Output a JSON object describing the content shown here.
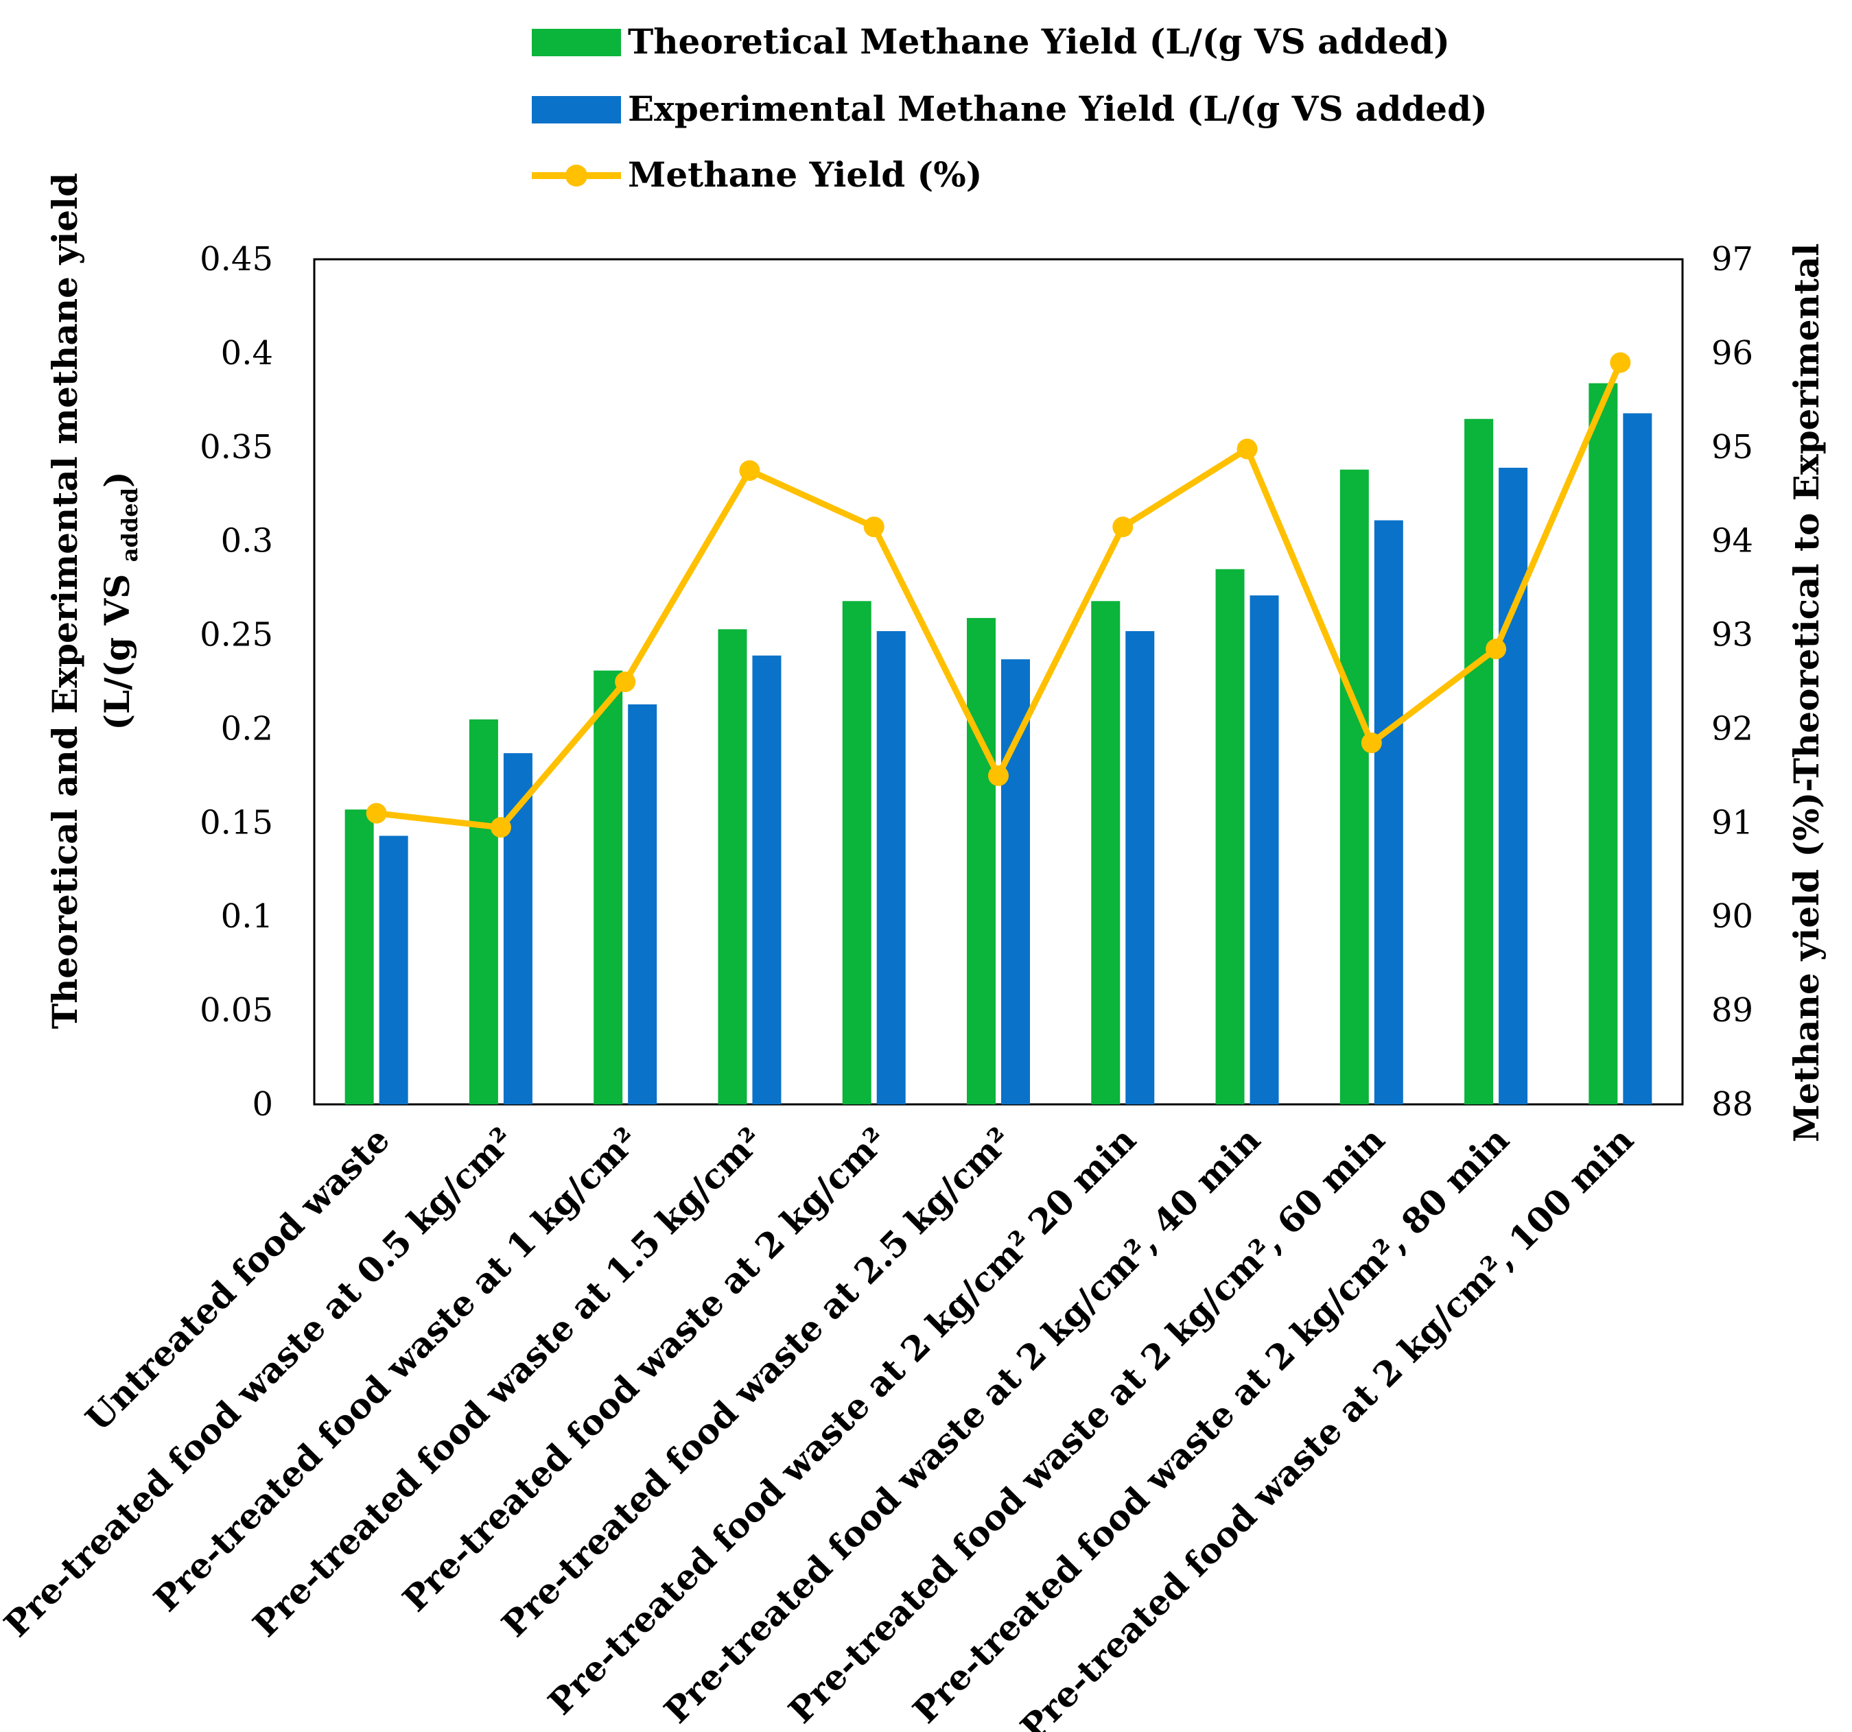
{
  "chart_data": {
    "type": "bar",
    "categories": [
      "Untreated food waste",
      "Pre-treated food waste at 0.5 kg/cm²",
      "Pre-treated food waste  at 1 kg/cm²",
      "Pre-treated food waste  at 1.5 kg/cm²",
      "Pre-treated food waste  at 2 kg/cm²",
      "Pre-treated food waste  at 2.5 kg/cm²",
      "Pre-treated food waste  at 2 kg/cm² 20 min",
      "Pre-treated food waste  at 2 kg/cm², 40 min",
      "Pre-treated food waste  at 2 kg/cm², 60 min",
      "Pre-treated food waste  at 2 kg/cm², 80 min",
      "Pre-treated food waste  at 2 kg/cm², 100 min"
    ],
    "series": [
      {
        "name": "Theoretical Methane Yield (L/(g VS added)",
        "type": "bar",
        "axis": "left",
        "color": "#0BB43A",
        "values": [
          0.157,
          0.205,
          0.231,
          0.253,
          0.268,
          0.259,
          0.268,
          0.285,
          0.338,
          0.365,
          0.384
        ]
      },
      {
        "name": "Experimental Methane Yield (L/(g VS added)",
        "type": "bar",
        "axis": "left",
        "color": "#0A72C9",
        "values": [
          0.143,
          0.187,
          0.213,
          0.239,
          0.252,
          0.237,
          0.252,
          0.271,
          0.311,
          0.339,
          0.368
        ]
      },
      {
        "name": "Methane Yield (%)",
        "type": "line",
        "axis": "right",
        "color": "#FFC000",
        "values": [
          91.1,
          90.95,
          92.5,
          94.75,
          94.15,
          91.5,
          94.15,
          94.98,
          91.85,
          92.85,
          95.9
        ]
      }
    ],
    "ylim": [
      0,
      0.45
    ],
    "y_ticks": [
      "0",
      "0.05",
      "0.1",
      "0.15",
      "0.2",
      "0.25",
      "0.3",
      "0.35",
      "0.4",
      "0.45"
    ],
    "y2lim": [
      88,
      97
    ],
    "y2_ticks": [
      "88",
      "89",
      "90",
      "91",
      "92",
      "93",
      "94",
      "95",
      "96",
      "97"
    ],
    "ylabel_line1": "Theoretical and Experimental methane yield",
    "ylabel_line2_prefix": "(L/(g VS ",
    "ylabel_line2_sub": "added",
    "ylabel_line2_suffix": ")",
    "y2label": "Methane yield (%)-Theoretical to Experimental",
    "legend_position": "top-center",
    "grid": false
  }
}
